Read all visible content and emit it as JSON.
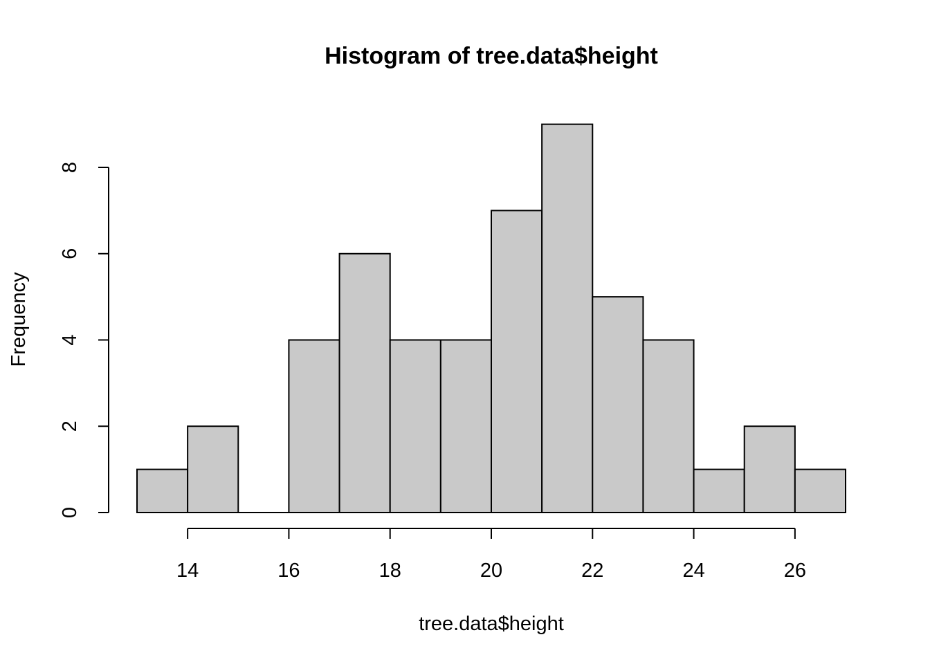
{
  "chart_data": {
    "type": "bar",
    "subtype": "histogram",
    "title": "Histogram of tree.data$height",
    "xlabel": "tree.data$height",
    "ylabel": "Frequency",
    "bins": [
      {
        "start": 13,
        "end": 14,
        "count": 1
      },
      {
        "start": 14,
        "end": 15,
        "count": 2
      },
      {
        "start": 15,
        "end": 16,
        "count": 0
      },
      {
        "start": 16,
        "end": 17,
        "count": 4
      },
      {
        "start": 17,
        "end": 18,
        "count": 6
      },
      {
        "start": 18,
        "end": 19,
        "count": 4
      },
      {
        "start": 19,
        "end": 20,
        "count": 4
      },
      {
        "start": 20,
        "end": 21,
        "count": 7
      },
      {
        "start": 21,
        "end": 22,
        "count": 9
      },
      {
        "start": 22,
        "end": 23,
        "count": 5
      },
      {
        "start": 23,
        "end": 24,
        "count": 4
      },
      {
        "start": 24,
        "end": 25,
        "count": 1
      },
      {
        "start": 25,
        "end": 26,
        "count": 2
      },
      {
        "start": 26,
        "end": 27,
        "count": 1
      }
    ],
    "xlim": [
      13,
      27
    ],
    "ylim": [
      0,
      9
    ],
    "x_ticks": [
      14,
      16,
      18,
      20,
      22,
      24,
      26
    ],
    "x_tick_labels": [
      "14",
      "16",
      "18",
      "20",
      "22",
      "24",
      "26"
    ],
    "y_ticks": [
      0,
      2,
      4,
      6,
      8
    ],
    "y_tick_labels": [
      "0",
      "2",
      "4",
      "6",
      "8"
    ],
    "grid": false,
    "legend": "none",
    "colors": {
      "bar_fill": "#c9c9c9",
      "bar_stroke": "#000000"
    }
  }
}
